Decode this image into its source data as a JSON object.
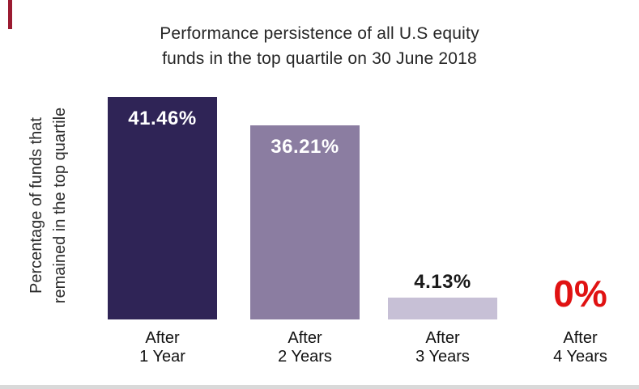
{
  "chart_data": {
    "type": "bar",
    "title": "Performance persistence of all U.S equity funds in the top quartile on 30 June 2018",
    "title_lines": [
      "Performance persistence of all U.S equity",
      "funds in the top quartile on 30 June 2018"
    ],
    "ylabel": "Percentage of funds that remained in the top quartile",
    "ylabel_lines": [
      "Percentage of funds that",
      "remained in the top quartile"
    ],
    "xlabel": "",
    "categories": [
      "After 1 Year",
      "After 2 Years",
      "After 3 Years",
      "After 4 Years"
    ],
    "values": [
      41.46,
      36.21,
      4.13,
      0
    ],
    "ylim": [
      0,
      45
    ],
    "grid": false,
    "legend_position": "none",
    "points": [
      {
        "label_lines": [
          "After",
          "1 Year"
        ],
        "value": 41.46,
        "value_label": "41.46%",
        "bar_color": "#2f2456",
        "value_color": "#ffffff",
        "value_inside": true
      },
      {
        "label_lines": [
          "After",
          "2 Years"
        ],
        "value": 36.21,
        "value_label": "36.21%",
        "bar_color": "#8b7da1",
        "value_color": "#ffffff",
        "value_inside": true
      },
      {
        "label_lines": [
          "After",
          "3 Years"
        ],
        "value": 4.13,
        "value_label": "4.13%",
        "bar_color": "#c7c0d6",
        "value_color": "#1a1a1a",
        "value_inside": false
      },
      {
        "label_lines": [
          "After",
          "4 Years"
        ],
        "value": 0,
        "value_label": "0%",
        "bar_color": null,
        "value_color": "#e01212",
        "value_inside": false
      }
    ]
  },
  "decor": {
    "accent_dash_color": "#9b1b31",
    "bottom_band_color": "#d9d9d9",
    "background_color": "#ffffff"
  }
}
